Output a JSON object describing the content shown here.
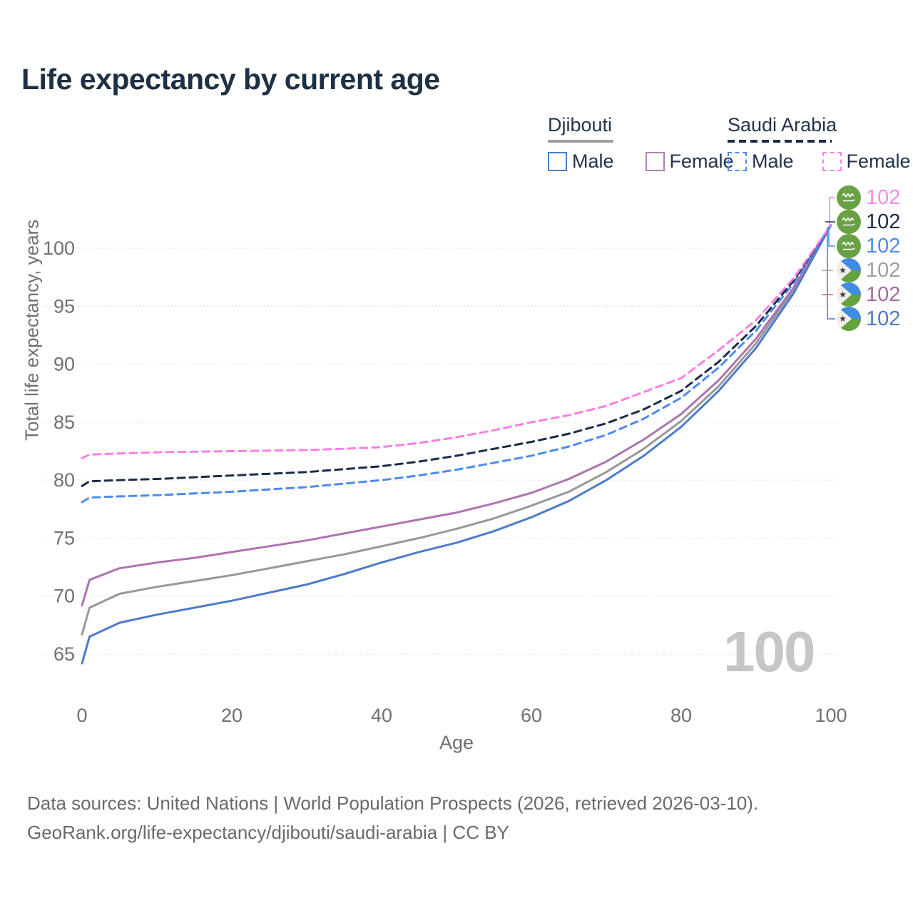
{
  "title": "Life expectancy by current age",
  "legend": {
    "groups": [
      {
        "title": "Djibouti",
        "line_style": "solid",
        "underline_color": "#9e9ea2",
        "items": [
          {
            "label": "Male",
            "color": "#4d7cc7"
          },
          {
            "label": "Female",
            "color": "#b181b5"
          }
        ]
      },
      {
        "title": "Saudi Arabia",
        "line_style": "dashed",
        "underline_color": "#1c2b4a",
        "items": [
          {
            "label": "Male",
            "color": "#4c8bf0"
          },
          {
            "label": "Female",
            "color": "#f884e3"
          }
        ]
      }
    ]
  },
  "watermark": "100",
  "footer": {
    "line1": "Data sources: United Nations | World Population Prospects (2026, retrieved 2026-03-10).",
    "line2": "GeoRank.org/life-expectancy/djibouti/saudi-arabia | CC BY"
  },
  "chart_data": {
    "type": "line",
    "title": "Life expectancy by current age",
    "xlabel": "Age",
    "ylabel": "Total life expectancy, years",
    "x_ticks": [
      0,
      20,
      40,
      60,
      80,
      100
    ],
    "y_ticks": [
      65,
      70,
      75,
      80,
      85,
      90,
      95,
      100
    ],
    "xlim": [
      0,
      100
    ],
    "ylim": [
      63.5,
      103
    ],
    "grid": "horizontal",
    "legend_position": "top-right",
    "ages": [
      0,
      1,
      5,
      10,
      15,
      20,
      25,
      30,
      35,
      40,
      45,
      50,
      55,
      60,
      65,
      70,
      75,
      80,
      85,
      90,
      95,
      100
    ],
    "series": [
      {
        "label": "Djibouti combined",
        "country": "Djibouti",
        "sex": "combined",
        "color": "#989898",
        "dash": false,
        "values": [
          66.7,
          69.0,
          70.2,
          70.8,
          71.3,
          71.8,
          72.4,
          73.0,
          73.6,
          74.3,
          75.0,
          75.8,
          76.7,
          77.8,
          79.0,
          80.7,
          82.7,
          85.1,
          88.1,
          91.8,
          96.4,
          102
        ],
        "end_label": {
          "value": "102",
          "flag": "djibouti-flag",
          "color": "#9e9ea2",
          "row": 3
        }
      },
      {
        "label": "Djibouti Female",
        "country": "Djibouti",
        "sex": "Female",
        "color": "#ad74b0",
        "dash": false,
        "values": [
          69.2,
          71.4,
          72.4,
          72.9,
          73.3,
          73.8,
          74.3,
          74.8,
          75.4,
          76.0,
          76.6,
          77.2,
          78.0,
          78.9,
          80.1,
          81.6,
          83.5,
          85.7,
          88.6,
          92.2,
          96.6,
          102
        ],
        "end_label": {
          "value": "102",
          "flag": "djibouti-flag",
          "color": "#a7699f",
          "row": 4
        }
      },
      {
        "label": "Djibouti Male",
        "country": "Djibouti",
        "sex": "Male",
        "color": "#4d7cc7",
        "dash": false,
        "values": [
          64.2,
          66.5,
          67.7,
          68.4,
          69.0,
          69.6,
          70.3,
          71.0,
          71.9,
          72.9,
          73.8,
          74.6,
          75.6,
          76.8,
          78.2,
          80.0,
          82.1,
          84.6,
          87.7,
          91.4,
          96.1,
          102
        ],
        "end_label": {
          "value": "102",
          "flag": "djibouti-flag",
          "color": "#4d7cc7",
          "row": 5
        }
      },
      {
        "label": "Saudi Arabia Male",
        "country": "Saudi Arabia",
        "sex": "Male",
        "color": "#4c8bf0",
        "dash": true,
        "values": [
          78.1,
          78.5,
          78.6,
          78.7,
          78.85,
          79.0,
          79.2,
          79.4,
          79.7,
          80.0,
          80.4,
          80.9,
          81.5,
          82.1,
          82.9,
          83.9,
          85.3,
          87.1,
          89.7,
          92.9,
          97.0,
          102
        ],
        "end_label": {
          "value": "102",
          "flag": "saudi-arabia-flag",
          "color": "#4c8bf0",
          "row": 2
        }
      },
      {
        "label": "Saudi Arabia combined",
        "country": "Saudi Arabia",
        "sex": "combined",
        "color": "#1c2b4a",
        "dash": true,
        "values": [
          79.5,
          79.9,
          80.0,
          80.1,
          80.25,
          80.4,
          80.55,
          80.7,
          80.95,
          81.2,
          81.6,
          82.1,
          82.7,
          83.3,
          84.0,
          84.9,
          86.1,
          87.7,
          90.2,
          93.3,
          97.2,
          102
        ],
        "end_label": {
          "value": "102",
          "flag": "saudi-arabia-flag",
          "color": "#1b2a44",
          "row": 1
        }
      },
      {
        "label": "Saudi Arabia Female",
        "country": "Saudi Arabia",
        "sex": "Female",
        "color": "#f97fe2",
        "dash": true,
        "values": [
          81.9,
          82.2,
          82.3,
          82.4,
          82.45,
          82.5,
          82.55,
          82.6,
          82.7,
          82.85,
          83.2,
          83.7,
          84.3,
          85.0,
          85.6,
          86.4,
          87.6,
          88.8,
          91.2,
          93.8,
          97.4,
          102
        ],
        "end_label": {
          "value": "102",
          "flag": "saudi-arabia-flag",
          "color": "#f78ae5",
          "row": 0
        }
      }
    ]
  }
}
